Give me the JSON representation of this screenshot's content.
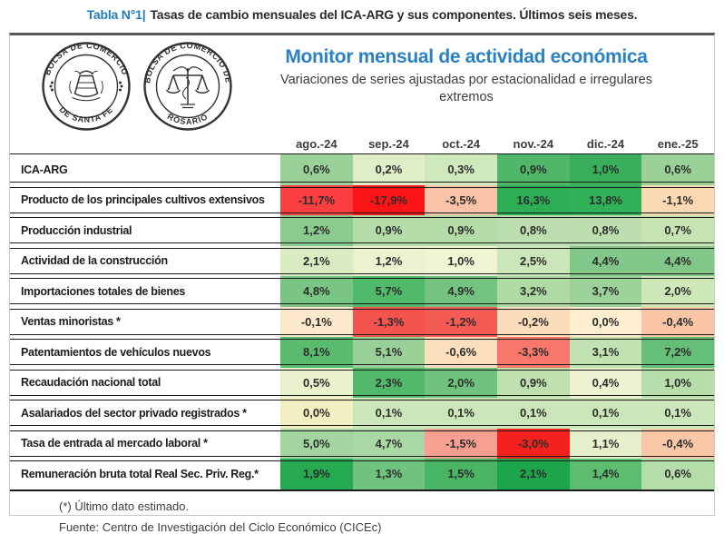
{
  "caption": {
    "prefix": "Tabla N°1|",
    "text": "Tasas de cambio mensuales del ICA-ARG y sus componentes. Últimos seis meses."
  },
  "header": {
    "logo_santa_fe": {
      "ring_top": "BOLSA DE COMERCIO",
      "ring_bottom": "DE SANTA FE"
    },
    "logo_rosario": {
      "ring_top": "BOLSA DE COMERCIO DE",
      "ring_bottom": "ROSARIO"
    },
    "title": "Monitor mensual de actividad económica",
    "subtitle": "Variaciones de series ajustadas por estacionalidad e irregulares extremos"
  },
  "colors": {
    "caption_blue": "#1F7EC0",
    "title_blue": "#2A81C1",
    "rule_gray": "#55565B",
    "scale_max_green": "#1CA54B",
    "scale_mid_yellow": "#F0F4D3",
    "scale_min_red": "#FC1416"
  },
  "chart_data": {
    "type": "heatmap",
    "title": "Monitor mensual de actividad económica",
    "subtitle": "Variaciones de series ajustadas por estacionalidad e irregulares extremos",
    "unit": "percent monthly change",
    "columns": [
      "ago.-24",
      "sep.-24",
      "oct.-24",
      "nov.-24",
      "dic.-24",
      "ene.-25"
    ],
    "rows": [
      {
        "label": "ICA-ARG",
        "values": [
          0.6,
          0.2,
          0.3,
          0.9,
          1.0,
          0.6
        ],
        "display": [
          "0,6%",
          "0,2%",
          "0,3%",
          "0,9%",
          "1,0%",
          "0,6%"
        ],
        "bg": [
          "#9AD199",
          "#DFEEC7",
          "#CFE8BC",
          "#4FB767",
          "#3AAF5B",
          "#9AD199"
        ]
      },
      {
        "label": "Producto de los principales cultivos extensivos",
        "values": [
          -11.7,
          -17.9,
          -3.5,
          16.3,
          13.8,
          -1.1
        ],
        "display": [
          "-11,7%",
          "-17,9%",
          "-3,5%",
          "16,3%",
          "13,8%",
          "-1,1%"
        ],
        "bg": [
          "#FB3E3F",
          "#FC1416",
          "#F8C3A7",
          "#2BAE54",
          "#30B057",
          "#FBD9B5"
        ]
      },
      {
        "label": "Producción industrial",
        "values": [
          1.2,
          0.9,
          0.9,
          0.8,
          0.8,
          0.7
        ],
        "display": [
          "1,2%",
          "0,9%",
          "0,9%",
          "0,8%",
          "0,8%",
          "0,7%"
        ],
        "bg": [
          "#8CCB8F",
          "#B4DCA9",
          "#B4DCA9",
          "#BDDFAF",
          "#BDDFAF",
          "#C6E3B4"
        ]
      },
      {
        "label": "Actividad de la construcción",
        "values": [
          2.1,
          1.2,
          1.0,
          2.5,
          4.4,
          4.4
        ],
        "display": [
          "2,1%",
          "1,2%",
          "1,0%",
          "2,5%",
          "4,4%",
          "4,4%"
        ],
        "bg": [
          "#D8EBC1",
          "#EBF2CF",
          "#F0F4D3",
          "#CBE6B8",
          "#81C789",
          "#81C789"
        ]
      },
      {
        "label": "Importaciones totales de bienes",
        "values": [
          4.8,
          5.7,
          4.9,
          3.2,
          3.7,
          2.0
        ],
        "display": [
          "4,8%",
          "5,7%",
          "4,9%",
          "3,2%",
          "3,7%",
          "2,0%"
        ],
        "bg": [
          "#79C583",
          "#51B96A",
          "#75C381",
          "#AEDAA4",
          "#9CD29A",
          "#CEE8BA"
        ]
      },
      {
        "label": "Ventas minoristas *",
        "values": [
          -0.1,
          -1.3,
          -1.2,
          -0.2,
          0.0,
          -0.4
        ],
        "display": [
          "-0,1%",
          "-1,3%",
          "-1,2%",
          "-0,2%",
          "0,0%",
          "-0,4%"
        ],
        "bg": [
          "#FCE8CA",
          "#F4534E",
          "#F45B55",
          "#FBDDBB",
          "#FDEECF",
          "#F9C5A4"
        ]
      },
      {
        "label": "Patentamientos de vehículos nuevos",
        "values": [
          8.1,
          5.1,
          -0.6,
          -3.3,
          3.1,
          7.2
        ],
        "display": [
          "8,1%",
          "5,1%",
          "-0,6%",
          "-3,3%",
          "3,1%",
          "7,2%"
        ],
        "bg": [
          "#58BB6E",
          "#98D098",
          "#FBDFBD",
          "#F7786A",
          "#C1E2B1",
          "#66BF76"
        ]
      },
      {
        "label": "Recaudación nacional total",
        "values": [
          0.5,
          2.3,
          2.0,
          0.9,
          0.4,
          1.0
        ],
        "display": [
          "0,5%",
          "2,3%",
          "2,0%",
          "0,9%",
          "0,4%",
          "1,0%"
        ],
        "bg": [
          "#E9F1CD",
          "#52B96B",
          "#70C37F",
          "#BFE1B0",
          "#EDF3D0",
          "#B7DEAB"
        ]
      },
      {
        "label": "Asalariados del sector privado registrados *",
        "values": [
          0.0,
          0.1,
          0.1,
          0.1,
          0.1,
          0.1
        ],
        "display": [
          "0,0%",
          "0,1%",
          "0,1%",
          "0,1%",
          "0,1%",
          "0,1%"
        ],
        "bg": [
          "#F4EFC3",
          "#CBE6B8",
          "#CBE6B8",
          "#CBE6B8",
          "#CBE6B8",
          "#CBE6B8"
        ]
      },
      {
        "label": "Tasa de entrada al mercado laboral *",
        "values": [
          5.0,
          4.7,
          -1.5,
          -3.0,
          1.1,
          -0.4
        ],
        "display": [
          "5,0%",
          "4,7%",
          "-1,5%",
          "-3,0%",
          "1,1%",
          "-0,4%"
        ],
        "bg": [
          "#A3D5A0",
          "#A9D8A4",
          "#F7A091",
          "#F4211E",
          "#E6F0CC",
          "#F9C8A9"
        ]
      },
      {
        "label": "Remuneración bruta total Real Sec. Priv. Reg.*",
        "values": [
          1.9,
          1.3,
          1.5,
          2.1,
          1.4,
          0.6
        ],
        "display": [
          "1,9%",
          "1,3%",
          "1,5%",
          "2,1%",
          "1,4%",
          "0,6%"
        ],
        "bg": [
          "#25A951",
          "#6FC37F",
          "#4BB566",
          "#1CA54B",
          "#5CBC70",
          "#B4DDA9"
        ]
      }
    ],
    "color_scale": "per-row 3-color scale: red (min) - pale yellow (mid) - green (max)",
    "legend_position": "none",
    "grid": "horizontal double row separators only"
  },
  "footer": {
    "note": "(*) Último dato estimado.",
    "source": "Fuente: Centro de Investigación del Ciclo Económico (CICEc)"
  }
}
